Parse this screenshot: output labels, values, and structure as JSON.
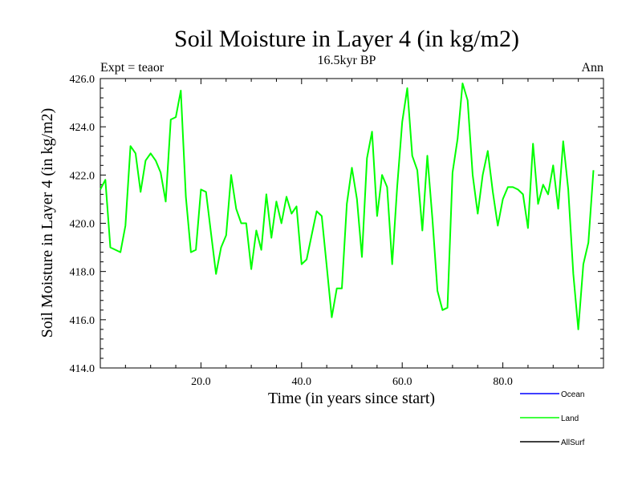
{
  "chart_data": {
    "type": "line",
    "title": "Soil Moisture in Layer 4 (in kg/m2)",
    "subtitle": "16.5kyr BP",
    "left_note": "Expt = teaor",
    "right_note": "Ann",
    "xlabel": "Time (in years since start)",
    "ylabel": "Soil Moisture in Layer 4 (in kg/m2)",
    "xlim": [
      0,
      100
    ],
    "ylim": [
      414,
      426
    ],
    "x_ticks": [
      20,
      40,
      60,
      80
    ],
    "x_tick_labels": [
      "20.0",
      "40.0",
      "60.0",
      "80.0"
    ],
    "y_ticks": [
      414,
      416,
      418,
      420,
      422,
      424,
      426
    ],
    "y_tick_labels": [
      "414.0",
      "416.0",
      "418.0",
      "420.0",
      "422.0",
      "424.0",
      "426.0"
    ],
    "legend": [
      {
        "name": "Ocean",
        "color": "#0000ff"
      },
      {
        "name": "Land",
        "color": "#00ff00"
      },
      {
        "name": "AllSurf",
        "color": "#000000"
      }
    ],
    "series": [
      {
        "name": "Land",
        "color": "#00ff00",
        "x": [
          0,
          1,
          2,
          3,
          4,
          5,
          6,
          7,
          8,
          9,
          10,
          11,
          12,
          13,
          14,
          15,
          16,
          17,
          18,
          19,
          20,
          21,
          22,
          23,
          24,
          25,
          26,
          27,
          28,
          29,
          30,
          31,
          32,
          33,
          34,
          35,
          36,
          37,
          38,
          39,
          40,
          41,
          42,
          43,
          44,
          45,
          46,
          47,
          48,
          49,
          50,
          51,
          52,
          53,
          54,
          55,
          56,
          57,
          58,
          59,
          60,
          61,
          62,
          63,
          64,
          65,
          66,
          67,
          68,
          69,
          70,
          71,
          72,
          73,
          74,
          75,
          76,
          77,
          78,
          79,
          80,
          81,
          82,
          83,
          84,
          85,
          86,
          87,
          88,
          89,
          90,
          91,
          92,
          93,
          94,
          95,
          96,
          97,
          98
        ],
        "values": [
          421.4,
          421.8,
          419.0,
          418.9,
          418.8,
          419.9,
          423.2,
          422.9,
          421.3,
          422.6,
          422.9,
          422.6,
          422.1,
          420.9,
          424.3,
          424.4,
          425.5,
          421.1,
          418.8,
          418.9,
          421.4,
          421.3,
          419.6,
          417.9,
          419.0,
          419.5,
          422.0,
          420.6,
          420.0,
          420.0,
          418.1,
          419.7,
          418.9,
          421.2,
          419.4,
          420.9,
          420.0,
          421.1,
          420.4,
          420.7,
          418.3,
          418.5,
          419.5,
          420.5,
          420.3,
          418.2,
          416.1,
          417.3,
          417.3,
          420.8,
          422.3,
          421.0,
          418.6,
          422.7,
          423.8,
          420.3,
          422.0,
          421.5,
          418.3,
          421.5,
          424.2,
          425.6,
          422.8,
          422.2,
          419.7,
          422.8,
          420.2,
          417.2,
          416.4,
          416.5,
          422.1,
          423.5,
          425.8,
          425.1,
          422.0,
          420.4,
          422.0,
          423.0,
          421.3,
          419.9,
          421.0,
          421.5,
          421.5,
          421.4,
          421.2,
          419.8,
          423.3,
          420.8,
          421.6,
          421.2,
          422.4,
          420.6,
          423.4,
          421.4,
          417.9,
          415.6,
          418.3,
          419.2,
          422.2
        ]
      }
    ]
  }
}
